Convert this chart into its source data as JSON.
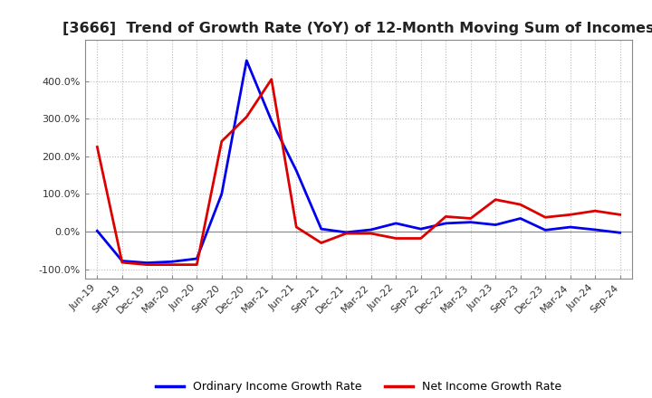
{
  "title": "[3666]  Trend of Growth Rate (YoY) of 12-Month Moving Sum of Incomes",
  "title_fontsize": 11.5,
  "legend_labels": [
    "Ordinary Income Growth Rate",
    "Net Income Growth Rate"
  ],
  "line_colors": [
    "#0000EE",
    "#DD0000"
  ],
  "dates": [
    "Jun-19",
    "Sep-19",
    "Dec-19",
    "Mar-20",
    "Jun-20",
    "Sep-20",
    "Dec-20",
    "Mar-21",
    "Jun-21",
    "Sep-21",
    "Dec-21",
    "Mar-22",
    "Jun-22",
    "Sep-22",
    "Dec-22",
    "Mar-23",
    "Jun-23",
    "Sep-23",
    "Dec-23",
    "Mar-24",
    "Jun-24",
    "Sep-24"
  ],
  "ordinary_income": [
    0.02,
    -0.78,
    -0.83,
    -0.8,
    -0.72,
    1.0,
    4.55,
    2.95,
    1.62,
    0.07,
    -0.02,
    0.05,
    0.22,
    0.07,
    0.22,
    0.25,
    0.18,
    0.35,
    0.04,
    0.12,
    0.05,
    -0.03
  ],
  "net_income": [
    2.25,
    -0.82,
    -0.88,
    -0.88,
    -0.88,
    2.4,
    3.05,
    4.05,
    0.12,
    -0.3,
    -0.05,
    -0.05,
    -0.18,
    -0.18,
    0.4,
    0.35,
    0.85,
    0.72,
    0.38,
    0.45,
    0.55,
    0.45
  ],
  "ylim": [
    -1.25,
    5.1
  ],
  "yticks": [
    -1.0,
    0.0,
    1.0,
    2.0,
    3.0,
    4.0
  ],
  "ytick_labels": [
    "-100.0%",
    "0.0%",
    "100.0%",
    "200.0%",
    "300.0%",
    "400.0%"
  ],
  "background_color": "#FFFFFF",
  "grid_color": "#AAAAAA",
  "spine_color": "#888888",
  "line_width": 2.0,
  "tick_fontsize": 8,
  "legend_fontsize": 9,
  "figsize": [
    7.2,
    4.4
  ],
  "dpi": 100
}
